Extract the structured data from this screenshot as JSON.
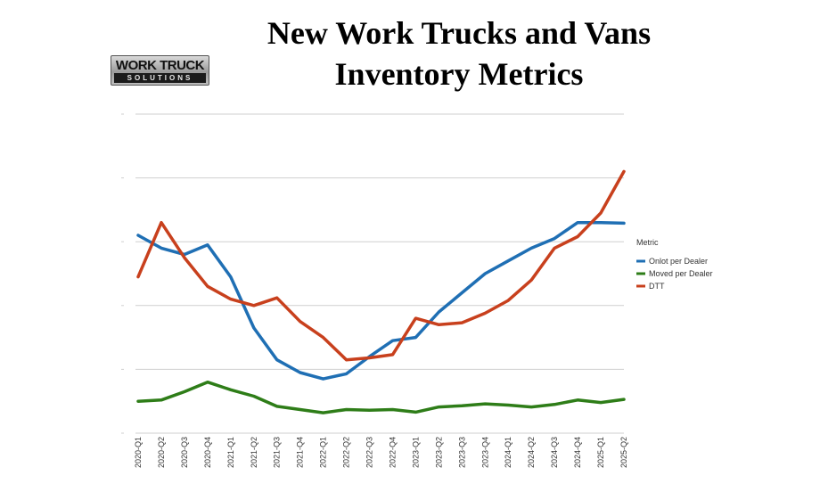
{
  "title_line1": "New Work Trucks and Vans",
  "title_line2": "Inventory Metrics",
  "logo": {
    "main": "WORK TRUCK",
    "sub": "SOLUTIONS"
  },
  "chart_data": {
    "type": "line",
    "title": "New Work Trucks and Vans Inventory Metrics",
    "xlabel": "",
    "ylabel": "",
    "y_tick_labels_visible": false,
    "grid": true,
    "legend_placement": "right",
    "legend_title": "Metric",
    "categories": [
      "2020-Q1",
      "2020-Q2",
      "2020-Q3",
      "2020-Q4",
      "2021-Q1",
      "2021-Q2",
      "2021-Q3",
      "2021-Q4",
      "2022-Q1",
      "2022-Q2",
      "2022-Q3",
      "2022-Q4",
      "2023-Q1",
      "2023-Q2",
      "2023-Q3",
      "2023-Q4",
      "2024-Q1",
      "2024-Q2",
      "2024-Q3",
      "2024-Q4",
      "2025-Q1",
      "2025-Q2"
    ],
    "ylim": [
      0,
      5
    ],
    "series": [
      {
        "name": "Onlot per Dealer",
        "color": "#1f6fb4",
        "values": [
          3.1,
          2.9,
          2.8,
          2.95,
          2.45,
          1.65,
          1.15,
          0.95,
          0.85,
          0.93,
          1.2,
          1.45,
          1.5,
          1.9,
          2.2,
          2.5,
          2.7,
          2.9,
          3.05,
          3.3,
          3.3,
          3.29
        ]
      },
      {
        "name": "Moved per Dealer",
        "color": "#2e7d18",
        "values": [
          0.5,
          0.52,
          0.65,
          0.8,
          0.68,
          0.58,
          0.42,
          0.37,
          0.32,
          0.37,
          0.36,
          0.37,
          0.33,
          0.41,
          0.43,
          0.46,
          0.44,
          0.41,
          0.45,
          0.52,
          0.48,
          0.53
        ]
      },
      {
        "name": "DTT",
        "color": "#c8401d",
        "values": [
          2.45,
          3.3,
          2.75,
          2.3,
          2.1,
          2.0,
          2.12,
          1.75,
          1.5,
          1.15,
          1.18,
          1.23,
          1.8,
          1.7,
          1.73,
          1.88,
          2.08,
          2.4,
          2.9,
          3.08,
          3.45,
          4.1
        ]
      }
    ]
  }
}
